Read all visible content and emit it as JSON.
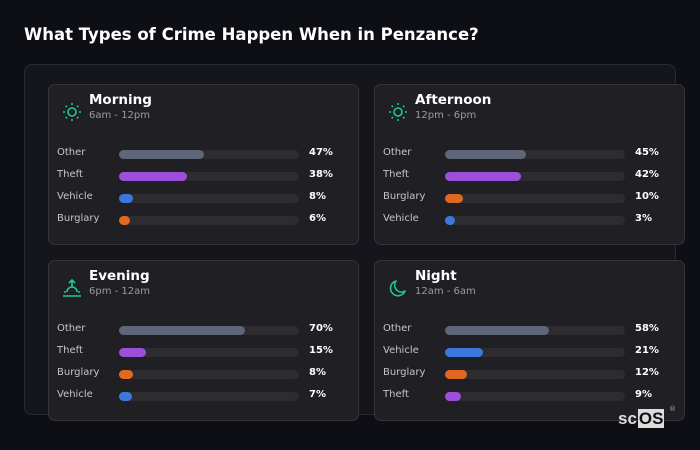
{
  "title": "What Types of Crime Happen When in Penzance?",
  "colors": {
    "Other": "#5f6678",
    "Theft": "#9b4fdb",
    "Vehicle": "#3a78dd",
    "Burglary": "#e0691f",
    "icon": "#1fc79a"
  },
  "cards": [
    {
      "name": "Morning",
      "range": "6am - 12pm",
      "icon": "sun-icon",
      "rows": [
        {
          "label": "Other",
          "pct": 47,
          "text": "47%"
        },
        {
          "label": "Theft",
          "pct": 38,
          "text": "38%"
        },
        {
          "label": "Vehicle",
          "pct": 8,
          "text": "8%"
        },
        {
          "label": "Burglary",
          "pct": 6,
          "text": "6%"
        }
      ]
    },
    {
      "name": "Afternoon",
      "range": "12pm - 6pm",
      "icon": "sun-icon",
      "rows": [
        {
          "label": "Other",
          "pct": 45,
          "text": "45%"
        },
        {
          "label": "Theft",
          "pct": 42,
          "text": "42%"
        },
        {
          "label": "Burglary",
          "pct": 10,
          "text": "10%"
        },
        {
          "label": "Vehicle",
          "pct": 3,
          "text": "3%"
        }
      ]
    },
    {
      "name": "Evening",
      "range": "6pm - 12am",
      "icon": "sunset-icon",
      "rows": [
        {
          "label": "Other",
          "pct": 70,
          "text": "70%"
        },
        {
          "label": "Theft",
          "pct": 15,
          "text": "15%"
        },
        {
          "label": "Burglary",
          "pct": 8,
          "text": "8%"
        },
        {
          "label": "Vehicle",
          "pct": 7,
          "text": "7%"
        }
      ]
    },
    {
      "name": "Night",
      "range": "12am - 6am",
      "icon": "moon-icon",
      "rows": [
        {
          "label": "Other",
          "pct": 58,
          "text": "58%"
        },
        {
          "label": "Vehicle",
          "pct": 21,
          "text": "21%"
        },
        {
          "label": "Burglary",
          "pct": 12,
          "text": "12%"
        },
        {
          "label": "Theft",
          "pct": 9,
          "text": "9%"
        }
      ]
    }
  ],
  "logo": {
    "a": "sc",
    "b": "OS",
    "reg": "®"
  }
}
